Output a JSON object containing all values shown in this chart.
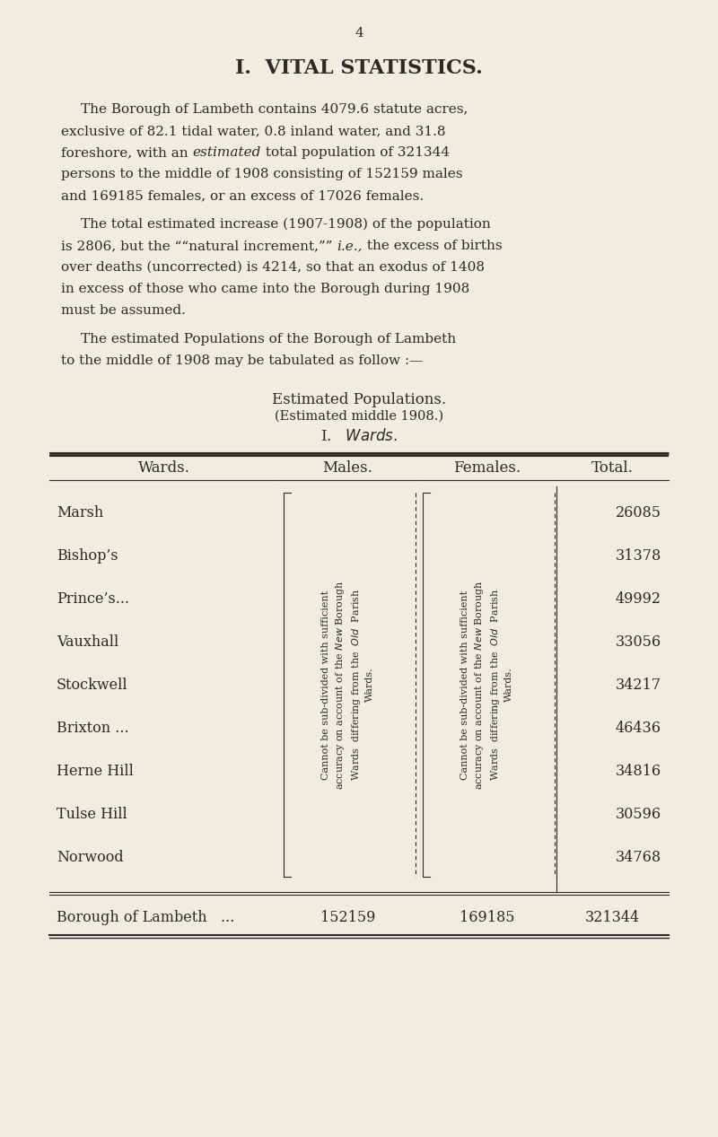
{
  "page_number": "4",
  "title": "I.  VITAL STATISTICS.",
  "paragraph1": "The Borough of Lambeth contains 4079.6 statute acres, exclusive of 82.1 tidal water, 0.8 inland water, and 31.8 foreshore, with an [estimated] total population of 321344 persons to the middle of 1908 consisting of 152159 males and 169185 females, or an excess of 17026 females.",
  "paragraph2": "The total estimated increase (1907-1908) of the population is 2806, but the ‘‘natural increment,’’ [i.e.,] the excess of births over deaths (uncorrected) is 4214, so that an exodus of 1408 in excess of those who came into the Borough during 1908 must be assumed.",
  "paragraph3_start": "The estimated Populations of the Borough of Lambeth to the middle of 1908 may be tabulated as follow :—",
  "table_title1": "Estimated Populations.",
  "table_title2": "(Estimated middle 1908.)",
  "table_title3": "I.   Wards.",
  "col_headers": [
    "Wards.",
    "Males.",
    "Females.",
    "Total."
  ],
  "wards": [
    "Marsh",
    "Bishop’s",
    "Prince’s...",
    "Vauxhall",
    "Stockwell",
    "Brixton ...",
    "Herne Hill",
    "Tulse Hill",
    "Norwood"
  ],
  "ward_dots": [
    "  ...   ...   ...",
    "   ...   ...",
    "   ...   ...",
    "   ...   ...",
    "   ...   ...",
    "   ...   ...",
    "   ..   ..",
    "   ...   ...",
    "   ...   ..."
  ],
  "totals": [
    "26085",
    "31378",
    "49992",
    "33056",
    "34217",
    "46436",
    "34816",
    "30596",
    "34768"
  ],
  "footer_ward": "Borough of Lambeth   ...",
  "footer_males": "152159",
  "footer_females": "169185",
  "footer_total": "321344",
  "rotated_text_males": "Cannot be sub-divided with sufficient accuracy on account of the New Borough Wards differing from the Old Parish Wards.",
  "rotated_text_females": "Cannot be sub-divided with sufficient accuracy on account of the New Borough Wards differing from the Old Parish Wards.",
  "bg_color": "#f0ece0",
  "text_color": "#2a2a2a",
  "font_size_body": 11,
  "font_size_title": 13,
  "font_size_heading": 15
}
